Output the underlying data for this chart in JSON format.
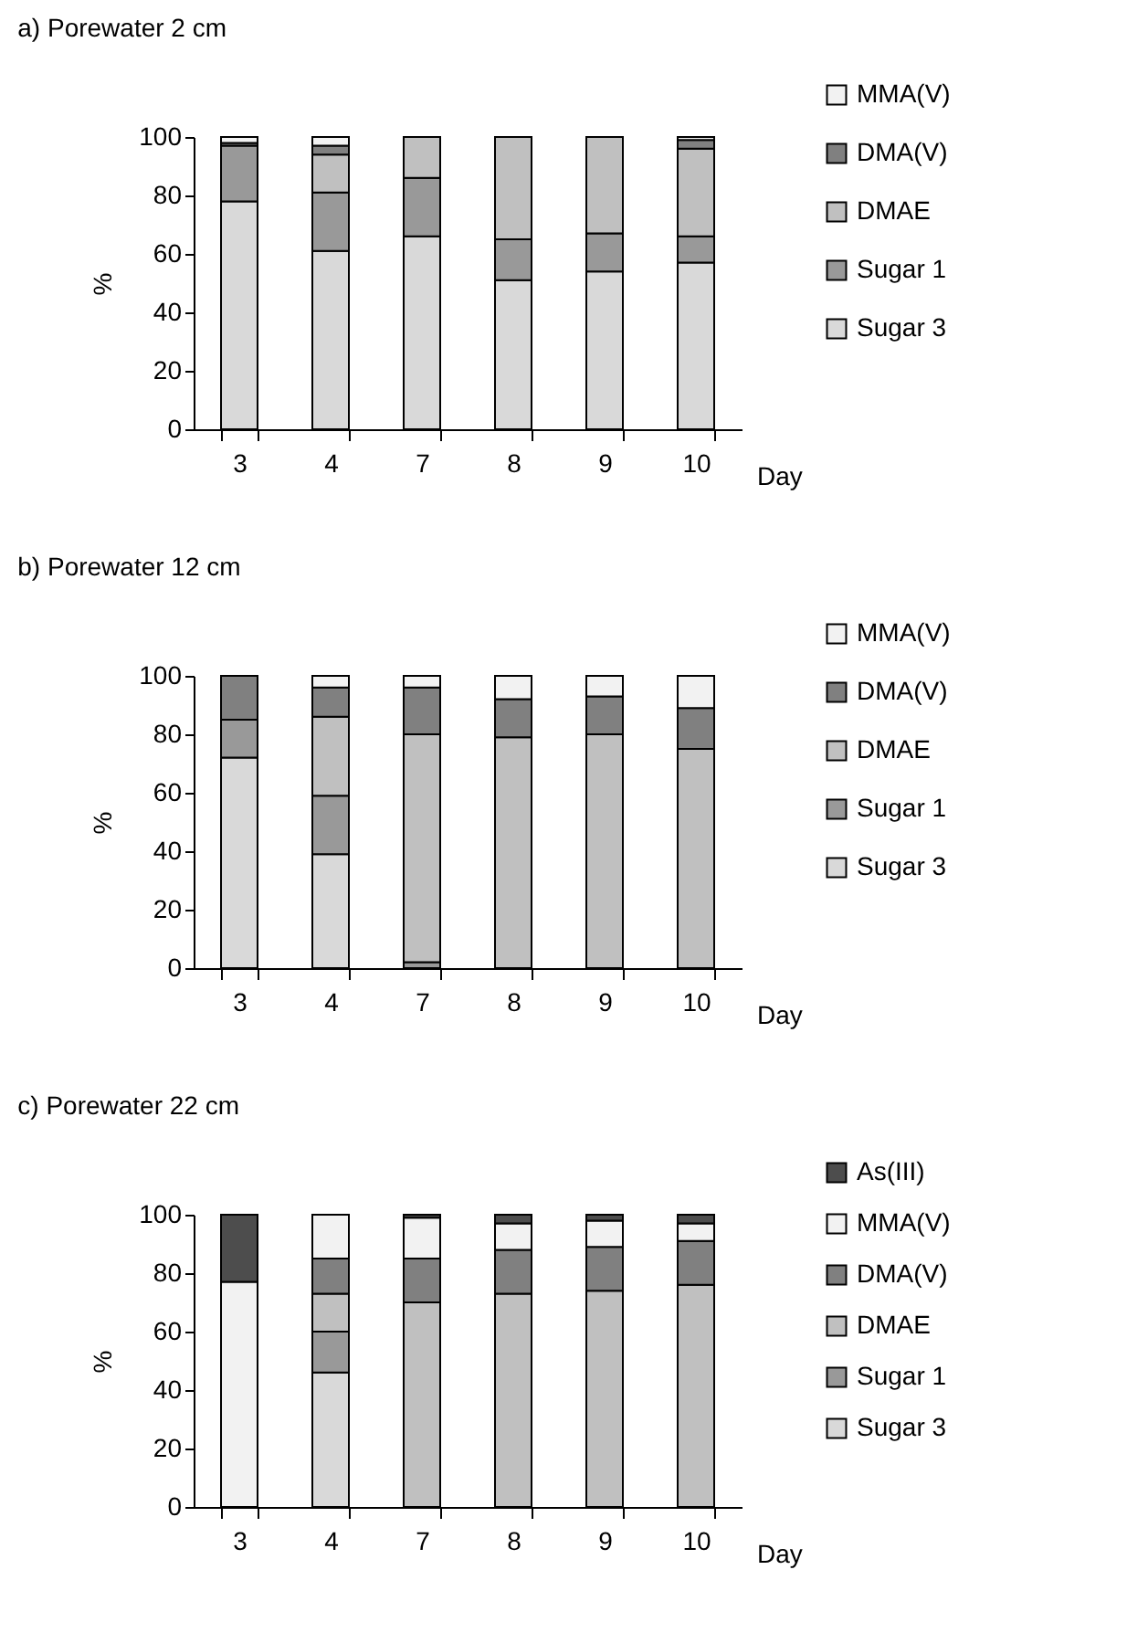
{
  "chart_data": [
    {
      "type": "bar",
      "title": "a) Porewater 2 cm",
      "xlabel": "Day",
      "ylabel": "%",
      "categories": [
        "3",
        "4",
        "7",
        "8",
        "9",
        "10"
      ],
      "stacked": true,
      "legend": "right",
      "ylim": [
        0,
        100
      ],
      "yticks": [
        0,
        20,
        40,
        60,
        80,
        100
      ],
      "series": [
        {
          "name": "Sugar 3",
          "color": "#d9d9d9",
          "values": [
            78,
            61,
            66,
            51,
            54,
            57
          ]
        },
        {
          "name": "Sugar 1",
          "color": "#999999",
          "values": [
            19,
            20,
            20,
            14,
            13,
            9
          ]
        },
        {
          "name": "DMAE",
          "color": "#c0c0c0",
          "values": [
            0,
            13,
            14,
            35,
            33,
            30
          ]
        },
        {
          "name": "DMA(V)",
          "color": "#808080",
          "values": [
            1,
            3,
            0,
            0,
            0,
            3
          ]
        },
        {
          "name": "MMA(V)",
          "color": "#f2f2f2",
          "values": [
            2,
            3,
            0,
            0,
            0,
            1
          ]
        }
      ]
    },
    {
      "type": "bar",
      "title": "b) Porewater 12 cm",
      "xlabel": "Day",
      "ylabel": "%",
      "categories": [
        "3",
        "4",
        "7",
        "8",
        "9",
        "10"
      ],
      "stacked": true,
      "legend": "right",
      "ylim": [
        0,
        100
      ],
      "yticks": [
        0,
        20,
        40,
        60,
        80,
        100
      ],
      "series": [
        {
          "name": "Sugar 3",
          "color": "#d9d9d9",
          "values": [
            72,
            39,
            0,
            0,
            0,
            0
          ]
        },
        {
          "name": "Sugar 1",
          "color": "#999999",
          "values": [
            13,
            20,
            2,
            0,
            0,
            0
          ]
        },
        {
          "name": "DMAE",
          "color": "#c0c0c0",
          "values": [
            0,
            27,
            78,
            79,
            80,
            75
          ]
        },
        {
          "name": "DMA(V)",
          "color": "#808080",
          "values": [
            15,
            10,
            16,
            13,
            13,
            14
          ]
        },
        {
          "name": "MMA(V)",
          "color": "#f2f2f2",
          "values": [
            0,
            4,
            4,
            8,
            7,
            11
          ]
        }
      ]
    },
    {
      "type": "bar",
      "title": "c) Porewater 22 cm",
      "xlabel": "Day",
      "ylabel": "%",
      "categories": [
        "3",
        "4",
        "7",
        "8",
        "9",
        "10"
      ],
      "stacked": true,
      "legend": "right",
      "ylim": [
        0,
        100
      ],
      "yticks": [
        0,
        20,
        40,
        60,
        80,
        100
      ],
      "series": [
        {
          "name": "Sugar 3",
          "color": "#d9d9d9",
          "values": [
            0,
            46,
            0,
            0,
            0,
            0
          ]
        },
        {
          "name": "Sugar 1",
          "color": "#999999",
          "values": [
            0,
            14,
            0,
            0,
            0,
            0
          ]
        },
        {
          "name": "DMAE",
          "color": "#c0c0c0",
          "values": [
            0,
            13,
            70,
            73,
            74,
            76
          ]
        },
        {
          "name": "DMA(V)",
          "color": "#808080",
          "values": [
            0,
            12,
            15,
            15,
            15,
            15
          ]
        },
        {
          "name": "MMA(V)",
          "color": "#f2f2f2",
          "values": [
            77,
            15,
            14,
            9,
            9,
            6
          ]
        },
        {
          "name": "As(III)",
          "color": "#4d4d4d",
          "values": [
            23,
            0,
            1,
            3,
            2,
            3
          ]
        }
      ]
    }
  ]
}
